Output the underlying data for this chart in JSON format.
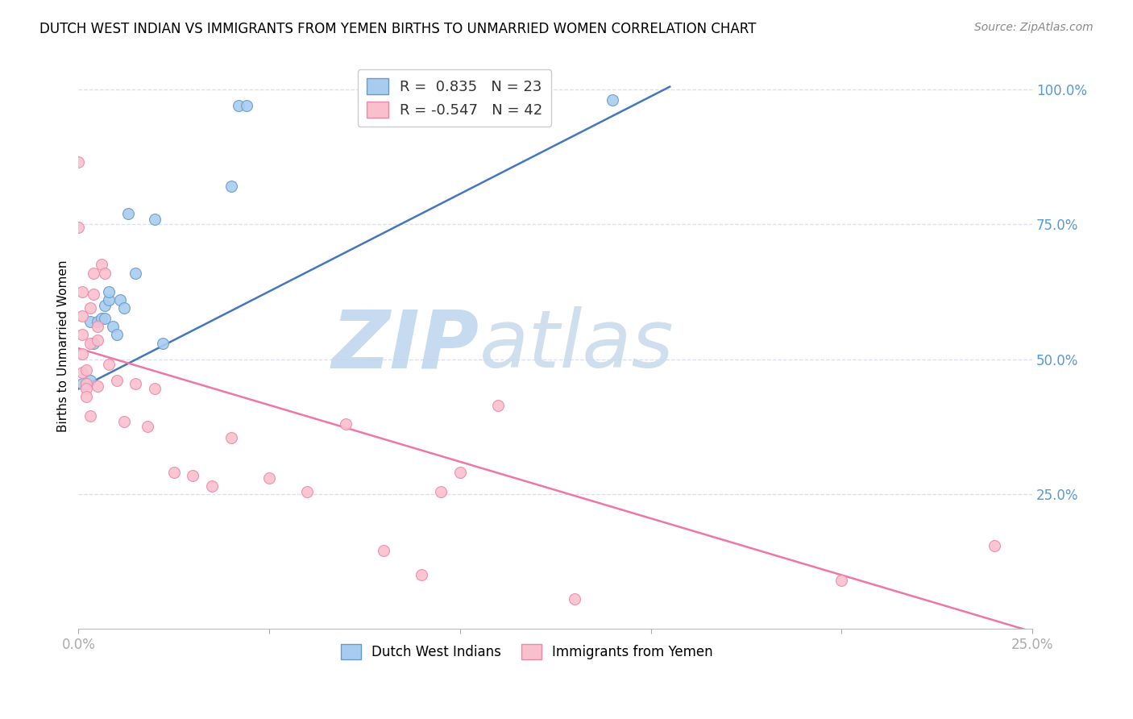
{
  "title": "DUTCH WEST INDIAN VS IMMIGRANTS FROM YEMEN BIRTHS TO UNMARRIED WOMEN CORRELATION CHART",
  "source": "Source: ZipAtlas.com",
  "ylabel": "Births to Unmarried Women",
  "xmin": 0.0,
  "xmax": 0.25,
  "ymin": 0.0,
  "ymax": 1.05,
  "yticks": [
    0.25,
    0.5,
    0.75,
    1.0
  ],
  "ytick_labels": [
    "25.0%",
    "50.0%",
    "75.0%",
    "100.0%"
  ],
  "xticks": [
    0.0,
    0.05,
    0.1,
    0.15,
    0.2,
    0.25
  ],
  "xtick_labels": [
    "0.0%",
    "",
    "",
    "",
    "",
    "25.0%"
  ],
  "blue_R": 0.835,
  "blue_N": 23,
  "pink_R": -0.547,
  "pink_N": 42,
  "blue_fill_color": "#A8CCEE",
  "pink_fill_color": "#F9C0CC",
  "blue_edge_color": "#6699CC",
  "pink_edge_color": "#EE88AA",
  "blue_line_color": "#4477BB",
  "pink_line_color": "#EE77AA",
  "axis_color": "#5599DD",
  "grid_color": "#DDDDEE",
  "title_fontsize": 12,
  "source_fontsize": 10,
  "blue_scatter_x": [
    0.001,
    0.002,
    0.003,
    0.003,
    0.004,
    0.005,
    0.006,
    0.007,
    0.007,
    0.008,
    0.008,
    0.009,
    0.01,
    0.011,
    0.012,
    0.013,
    0.015,
    0.02,
    0.022,
    0.04,
    0.042,
    0.044,
    0.14
  ],
  "blue_scatter_y": [
    0.455,
    0.455,
    0.46,
    0.57,
    0.53,
    0.57,
    0.575,
    0.575,
    0.6,
    0.61,
    0.625,
    0.56,
    0.545,
    0.61,
    0.595,
    0.77,
    0.66,
    0.76,
    0.53,
    0.82,
    0.97,
    0.97,
    0.98
  ],
  "pink_scatter_x": [
    0.0,
    0.0,
    0.001,
    0.001,
    0.001,
    0.001,
    0.001,
    0.002,
    0.002,
    0.002,
    0.002,
    0.003,
    0.003,
    0.003,
    0.004,
    0.004,
    0.005,
    0.005,
    0.005,
    0.006,
    0.007,
    0.008,
    0.01,
    0.012,
    0.015,
    0.018,
    0.02,
    0.025,
    0.03,
    0.035,
    0.04,
    0.05,
    0.06,
    0.07,
    0.08,
    0.09,
    0.095,
    0.1,
    0.11,
    0.13,
    0.2,
    0.24
  ],
  "pink_scatter_y": [
    0.865,
    0.745,
    0.625,
    0.58,
    0.545,
    0.51,
    0.475,
    0.455,
    0.445,
    0.48,
    0.43,
    0.395,
    0.53,
    0.595,
    0.62,
    0.66,
    0.56,
    0.535,
    0.45,
    0.675,
    0.66,
    0.49,
    0.46,
    0.385,
    0.455,
    0.375,
    0.445,
    0.29,
    0.285,
    0.265,
    0.355,
    0.28,
    0.255,
    0.38,
    0.145,
    0.1,
    0.255,
    0.29,
    0.415,
    0.055,
    0.09,
    0.155
  ],
  "blue_trend_x0": 0.0,
  "blue_trend_y0": 0.445,
  "blue_trend_x1": 0.155,
  "blue_trend_y1": 1.005,
  "pink_trend_x0": 0.0,
  "pink_trend_y0": 0.52,
  "pink_trend_x1": 0.25,
  "pink_trend_y1": -0.005
}
